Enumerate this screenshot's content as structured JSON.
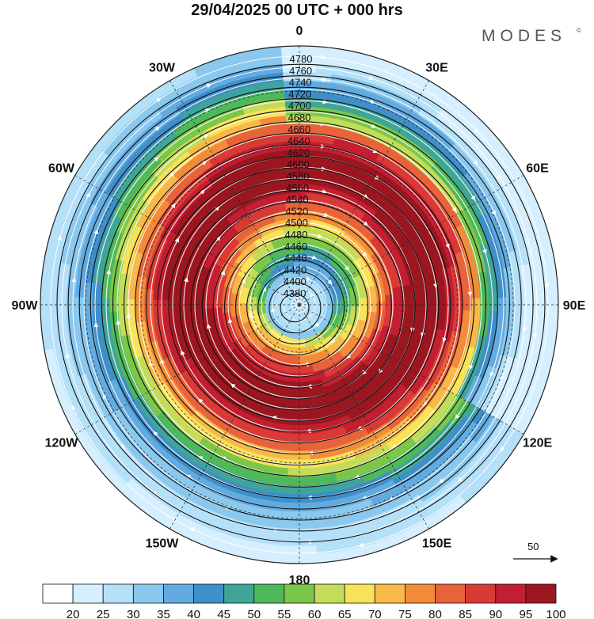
{
  "title": "29/04/2025  00 UTC  + 000 hrs",
  "brand": "MODES",
  "brand_mark": "©",
  "longitude_labels": [
    {
      "text": "0",
      "angle": 0
    },
    {
      "text": "30E",
      "angle": 30
    },
    {
      "text": "60E",
      "angle": 60
    },
    {
      "text": "90E",
      "angle": 90
    },
    {
      "text": "120E",
      "angle": 120
    },
    {
      "text": "150E",
      "angle": 150
    },
    {
      "text": "180",
      "angle": 180
    },
    {
      "text": "150W",
      "angle": 210
    },
    {
      "text": "120W",
      "angle": 240
    },
    {
      "text": "90W",
      "angle": 270
    },
    {
      "text": "60W",
      "angle": 300
    },
    {
      "text": "30W",
      "angle": 330
    }
  ],
  "contour_labels": [
    "4780",
    "4760",
    "4740",
    "4720",
    "4700",
    "4680",
    "4660",
    "4640",
    "4620",
    "4600",
    "4580",
    "4560",
    "4540",
    "4520",
    "4500",
    "4480",
    "4460",
    "4440",
    "4420",
    "4400",
    "4380"
  ],
  "colorbar": {
    "ticks": [
      "20",
      "25",
      "30",
      "35",
      "40",
      "45",
      "50",
      "55",
      "60",
      "65",
      "70",
      "75",
      "80",
      "85",
      "90",
      "95",
      "100"
    ],
    "colors": [
      "#ffffff",
      "#d6efff",
      "#b4e0f8",
      "#8ac8ee",
      "#62abe0",
      "#3f8fc9",
      "#3fa598",
      "#4fb85a",
      "#7bc74a",
      "#c3dc5a",
      "#f7e25a",
      "#f8b84a",
      "#f28c3a",
      "#e8623a",
      "#d93a36",
      "#c31f30",
      "#9c1620"
    ]
  },
  "reference_vector": {
    "label": "50"
  },
  "chart_data": {
    "type": "heatmap",
    "title": "29/04/2025  00 UTC  + 000 hrs",
    "projection": "polar stereographic, North Pole centered",
    "fields": [
      "filled: wind speed (colorbar 20-100)",
      "black contours: geopotential height",
      "white streamlines: wind direction"
    ],
    "contour_levels": [
      4380,
      4400,
      4420,
      4440,
      4460,
      4480,
      4500,
      4520,
      4540,
      4560,
      4580,
      4600,
      4620,
      4640,
      4660,
      4680,
      4700,
      4720,
      4740,
      4760,
      4780
    ],
    "colorbar_range": [
      20,
      100
    ],
    "colorbar_step": 5
  }
}
